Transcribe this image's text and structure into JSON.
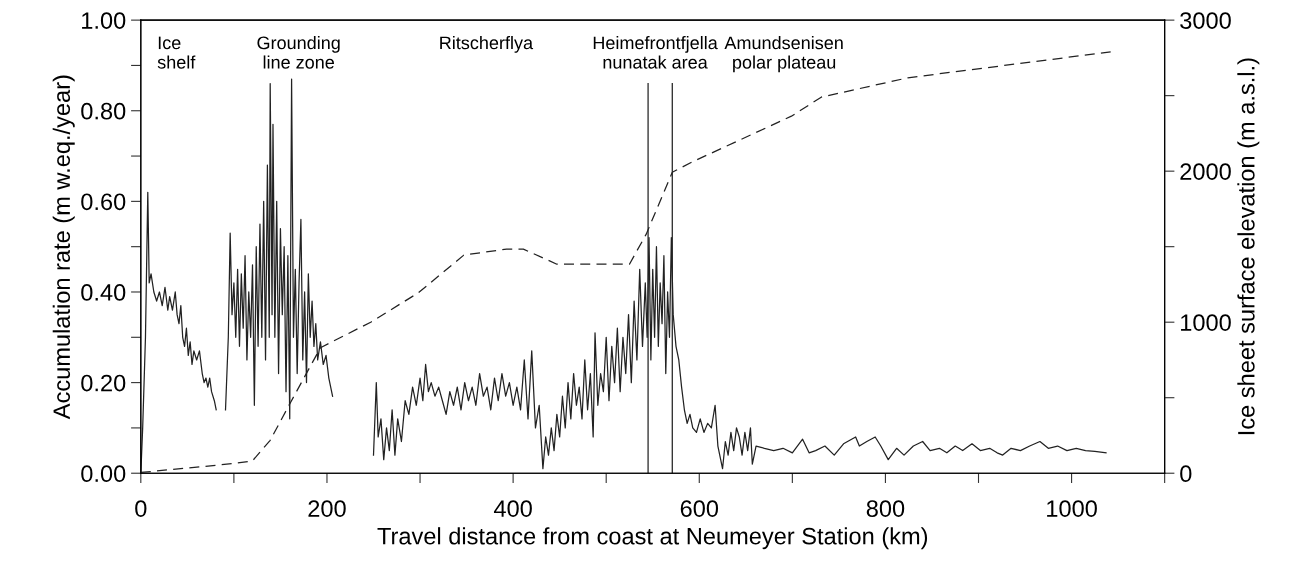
{
  "chart_data": {
    "type": "line",
    "xlabel": "Travel distance from coast at Neumeyer Station (km)",
    "ylabel": "Accumulation rate (m w.eq./year)",
    "y2label": "Ice sheet surface elevation (m a.s.l.)",
    "xlim": [
      0,
      1100
    ],
    "xticks": [
      0,
      {
        "value": 100,
        "label": null
      },
      200,
      {
        "value": 300,
        "label": null
      },
      400,
      {
        "value": 500,
        "label": null
      },
      600,
      {
        "value": 700,
        "label": null
      },
      800,
      {
        "value": 900,
        "label": null
      },
      1000,
      {
        "value": 1100,
        "label": null
      }
    ],
    "ylim": [
      0,
      1
    ],
    "yticks": [
      {
        "value": 0,
        "label": "0.00"
      },
      {
        "value": 0.1,
        "label": null
      },
      {
        "value": 0.2,
        "label": "0.20"
      },
      {
        "value": 0.3,
        "label": null
      },
      {
        "value": 0.4,
        "label": "0.40"
      },
      {
        "value": 0.5,
        "label": null
      },
      {
        "value": 0.6,
        "label": "0.60"
      },
      {
        "value": 0.7,
        "label": null
      },
      {
        "value": 0.8,
        "label": "0.80"
      },
      {
        "value": 0.9,
        "label": null
      },
      {
        "value": 1,
        "label": "1.00"
      }
    ],
    "y2lim": [
      0,
      3000
    ],
    "y2ticks": [
      0,
      {
        "value": 500,
        "label": null
      },
      1000,
      {
        "value": 1500,
        "label": null
      },
      2000,
      {
        "value": 2500,
        "label": null
      },
      3000
    ],
    "grid": false,
    "ref_lines": [
      {
        "axis": "x",
        "value": 545,
        "color": "#222222"
      },
      {
        "axis": "x",
        "value": 571,
        "color": "#222222"
      }
    ],
    "annotations": [
      "Ice\nshelf",
      "Grounding\nline zone",
      "Ritscherflya",
      "Heimefrontfjella\nnunatak area",
      "Amundsenisen\npolar plateau"
    ],
    "series": [
      {
        "color": "#222222",
        "line_style": "solid",
        "x": [
          0,
          2,
          5,
          7.5,
          9,
          11,
          14,
          17,
          20,
          23,
          26,
          29,
          31,
          34,
          37,
          39,
          41,
          43,
          45,
          47,
          49,
          51,
          53,
          55,
          57,
          60,
          63,
          66,
          68,
          70,
          72,
          74,
          76,
          79,
          81,
          86,
          91,
          94,
          96,
          98,
          100,
          102,
          104,
          106,
          108,
          110,
          112,
          114,
          116,
          118,
          120,
          122,
          124,
          126,
          128,
          130,
          132,
          134,
          136,
          138,
          139,
          141,
          142,
          144,
          146,
          148,
          150,
          152,
          154,
          156,
          158,
          160,
          162,
          164,
          166,
          168,
          170,
          172,
          174,
          176,
          178,
          180,
          182,
          184,
          186,
          188,
          190,
          193,
          196,
          199,
          202,
          206,
          228,
          250,
          253,
          255,
          258,
          261,
          264,
          267,
          270,
          273,
          276,
          280,
          284,
          288,
          292,
          296,
          300,
          303,
          306,
          309,
          312,
          316,
          320,
          324,
          328,
          332,
          336,
          340,
          344,
          348,
          352,
          356,
          360,
          364,
          368,
          372,
          376,
          380,
          384,
          388,
          392,
          396,
          400,
          404,
          408,
          412,
          416,
          420,
          424,
          428,
          432,
          435,
          438,
          441,
          444,
          447,
          450,
          453,
          456,
          459,
          462,
          465,
          468,
          471,
          474,
          477,
          480,
          483,
          486,
          488,
          491,
          494,
          497,
          500,
          503,
          506,
          509,
          512,
          515,
          518,
          521,
          524,
          527,
          530,
          533,
          536,
          539,
          542,
          544,
          546,
          548,
          550,
          552,
          554,
          556,
          558,
          560,
          562,
          564,
          566,
          568,
          570,
          572,
          575,
          578,
          581,
          584,
          587,
          590,
          593,
          597,
          601,
          605,
          609,
          613,
          617,
          620,
          625,
          628,
          631,
          634,
          637,
          640,
          643,
          646,
          649,
          652,
          655,
          657,
          661,
          670,
          680,
          690,
          700,
          711,
          718,
          725,
          735,
          745,
          755,
          768,
          772,
          780,
          789,
          795,
          803,
          812,
          820,
          830,
          840,
          848,
          858,
          866,
          875,
          883,
          893,
          902,
          912,
          920,
          926,
          935,
          945,
          955,
          966,
          975,
          985,
          995,
          1005,
          1015,
          1025,
          1037
        ],
        "values": [
          0.0,
          0.1,
          0.3,
          0.62,
          0.42,
          0.44,
          0.4,
          0.38,
          0.4,
          0.37,
          0.41,
          0.36,
          0.39,
          0.36,
          0.4,
          0.35,
          0.33,
          0.37,
          0.3,
          0.28,
          0.32,
          0.26,
          0.29,
          0.24,
          0.27,
          0.25,
          0.27,
          0.22,
          0.2,
          0.21,
          0.19,
          0.21,
          0.18,
          0.16,
          0.14,
          null,
          0.14,
          0.3,
          0.53,
          0.35,
          0.42,
          0.3,
          0.45,
          0.28,
          0.44,
          0.32,
          0.48,
          0.25,
          0.4,
          0.3,
          0.46,
          0.15,
          0.5,
          0.28,
          0.55,
          0.3,
          0.6,
          0.25,
          0.68,
          0.3,
          0.86,
          0.35,
          0.77,
          0.3,
          0.6,
          0.22,
          0.54,
          0.35,
          0.5,
          0.18,
          0.48,
          0.12,
          0.87,
          0.3,
          0.45,
          0.22,
          0.42,
          0.56,
          0.25,
          0.4,
          0.2,
          0.44,
          0.3,
          0.38,
          0.28,
          0.33,
          0.25,
          0.29,
          0.24,
          0.26,
          0.21,
          0.17,
          null,
          0.04,
          0.2,
          0.08,
          0.12,
          0.03,
          0.1,
          0.05,
          0.14,
          0.04,
          0.12,
          0.07,
          0.16,
          0.13,
          0.19,
          0.15,
          0.21,
          0.16,
          0.24,
          0.18,
          0.2,
          0.17,
          0.19,
          0.16,
          0.13,
          0.18,
          0.15,
          0.19,
          0.14,
          0.2,
          0.16,
          0.19,
          0.15,
          0.22,
          0.17,
          0.19,
          0.14,
          0.21,
          0.16,
          0.22,
          0.17,
          0.2,
          0.15,
          0.19,
          0.14,
          0.25,
          0.12,
          0.27,
          0.1,
          0.15,
          0.01,
          0.08,
          0.04,
          0.1,
          0.05,
          0.13,
          0.08,
          0.17,
          0.1,
          0.2,
          0.12,
          0.22,
          0.15,
          0.19,
          0.12,
          0.25,
          0.14,
          0.22,
          0.08,
          0.31,
          0.15,
          0.22,
          0.18,
          0.3,
          0.16,
          0.28,
          0.2,
          0.32,
          0.18,
          0.3,
          0.22,
          0.35,
          0.2,
          0.38,
          0.25,
          0.45,
          0.28,
          0.42,
          0.3,
          0.52,
          0.25,
          0.45,
          0.3,
          0.5,
          0.28,
          0.42,
          0.33,
          0.48,
          0.22,
          0.4,
          0.3,
          0.52,
          0.35,
          0.28,
          0.25,
          0.19,
          0.14,
          0.11,
          0.13,
          0.1,
          0.09,
          0.12,
          0.09,
          0.11,
          0.1,
          0.15,
          0.06,
          0.01,
          0.07,
          0.04,
          0.09,
          0.05,
          0.1,
          0.08,
          0.04,
          0.09,
          0.05,
          0.1,
          0.02,
          0.06,
          0.055,
          0.05,
          0.055,
          0.045,
          0.075,
          0.045,
          0.05,
          0.06,
          0.04,
          0.065,
          0.08,
          0.06,
          0.07,
          0.08,
          0.06,
          0.03,
          0.055,
          0.04,
          0.06,
          0.07,
          0.05,
          0.055,
          0.045,
          0.06,
          0.05,
          0.065,
          0.05,
          0.055,
          0.045,
          0.04,
          0.055,
          0.05,
          0.06,
          0.07,
          0.055,
          0.06,
          0.05,
          0.055,
          0.05,
          0.048,
          0.045
        ]
      },
      {
        "color": "#222222",
        "line_style": "dashed",
        "axis": "y2",
        "x": [
          0,
          98,
          120,
          139,
          161,
          193,
          247,
          298,
          347,
          393,
          411,
          447,
          525,
          543,
          571,
          592,
          699,
          731,
          824,
          1042
        ],
        "values": [
          5,
          63,
          82,
          218,
          470,
          831,
          1000,
          1194,
          1444,
          1484,
          1484,
          1384,
          1384,
          1583,
          1993,
          2060,
          2364,
          2490,
          2618,
          2790
        ]
      }
    ]
  }
}
